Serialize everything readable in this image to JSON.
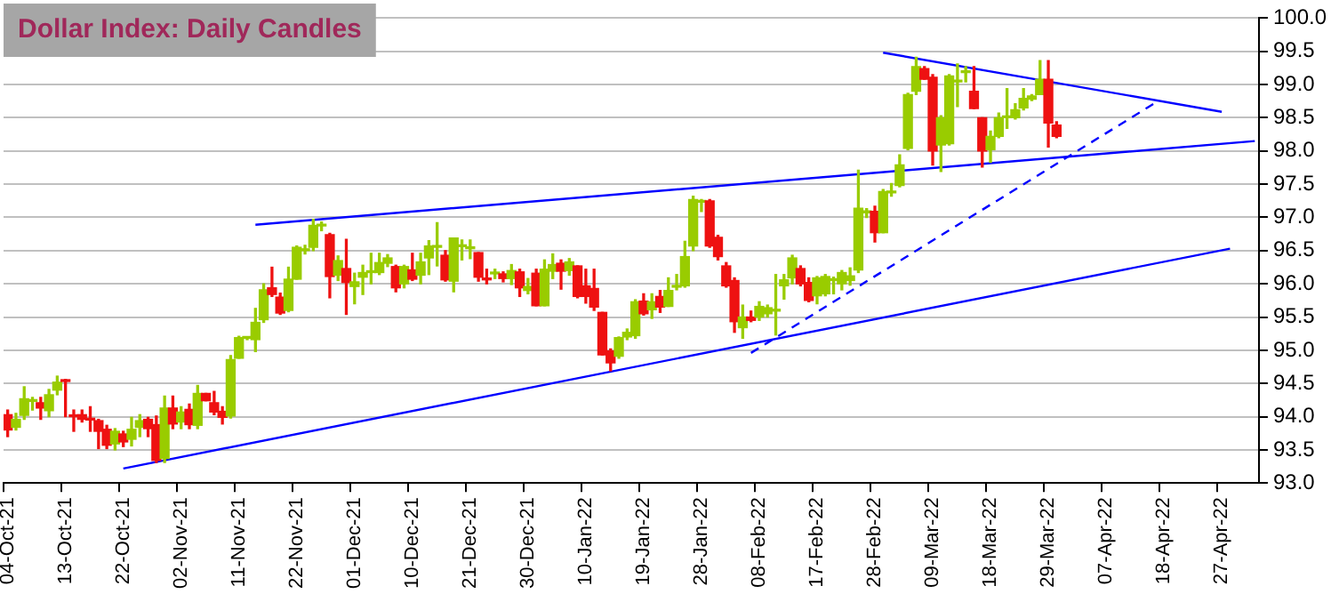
{
  "chart_data": {
    "type": "candlestick",
    "title": "Dollar Index: Daily Candles",
    "categories": [
      "04-Oct-21",
      null,
      null,
      null,
      null,
      null,
      null,
      "13-Oct-21",
      null,
      null,
      null,
      null,
      null,
      null,
      "22-Oct-21",
      null,
      null,
      null,
      null,
      null,
      null,
      "02-Nov-21",
      null,
      null,
      null,
      null,
      null,
      null,
      "11-Nov-21",
      null,
      null,
      null,
      null,
      null,
      null,
      "22-Nov-21",
      null,
      null,
      null,
      null,
      null,
      null,
      "01-Dec-21",
      null,
      null,
      null,
      null,
      null,
      null,
      "10-Dec-21",
      null,
      null,
      null,
      null,
      null,
      null,
      "21-Dec-21",
      null,
      null,
      null,
      null,
      null,
      null,
      "30-Dec-21",
      null,
      null,
      null,
      null,
      null,
      null,
      "10-Jan-22",
      null,
      null,
      null,
      null,
      null,
      null,
      "19-Jan-22",
      null,
      null,
      null,
      null,
      null,
      null,
      "28-Jan-22",
      null,
      null,
      null,
      null,
      null,
      null,
      "08-Feb-22",
      null,
      null,
      null,
      null,
      null,
      null,
      "17-Feb-22",
      null,
      null,
      null,
      null,
      null,
      null,
      "28-Feb-22",
      null,
      null,
      null,
      null,
      null,
      null,
      "09-Mar-22",
      null,
      null,
      null,
      null,
      null,
      null,
      "18-Mar-22",
      null,
      null,
      null,
      null,
      null,
      null,
      "29-Mar-22",
      null,
      null,
      null,
      null,
      null,
      null,
      "07-Apr-22",
      null,
      null,
      null,
      null,
      null,
      null,
      "18-Apr-22",
      null,
      null,
      null,
      null,
      null,
      null,
      "27-Apr-22",
      null,
      null,
      null,
      null
    ],
    "ohlc": [
      [
        94.03,
        94.1,
        93.7,
        93.8
      ],
      [
        93.84,
        94.05,
        93.8,
        93.96
      ],
      [
        94.02,
        94.45,
        93.96,
        94.27
      ],
      [
        94.23,
        94.29,
        94.1,
        94.24
      ],
      [
        94.21,
        94.29,
        93.96,
        94.13
      ],
      [
        94.09,
        94.41,
        94.0,
        94.33
      ],
      [
        94.4,
        94.61,
        94.33,
        94.52
      ],
      [
        94.54,
        94.56,
        94.0,
        94.53
      ],
      [
        94.01,
        94.1,
        93.78,
        94.0
      ],
      [
        94.03,
        94.1,
        93.92,
        93.96
      ],
      [
        93.96,
        94.15,
        93.78,
        93.95
      ],
      [
        93.94,
        93.96,
        93.52,
        93.78
      ],
      [
        93.81,
        93.87,
        93.52,
        93.57
      ],
      [
        93.59,
        93.82,
        93.5,
        93.78
      ],
      [
        93.74,
        93.78,
        93.55,
        93.62
      ],
      [
        93.66,
        93.99,
        93.56,
        93.81
      ],
      [
        93.84,
        94.03,
        93.7,
        93.94
      ],
      [
        93.96,
        93.99,
        93.7,
        93.82
      ],
      [
        93.88,
        94.01,
        93.31,
        93.34
      ],
      [
        93.37,
        94.31,
        93.31,
        94.13
      ],
      [
        94.13,
        94.31,
        93.82,
        93.89
      ],
      [
        93.92,
        94.15,
        93.82,
        94.07
      ],
      [
        94.11,
        94.19,
        93.82,
        93.88
      ],
      [
        93.87,
        94.47,
        93.82,
        94.35
      ],
      [
        94.35,
        94.35,
        94.24,
        94.24
      ],
      [
        94.21,
        94.38,
        94.03,
        94.07
      ],
      [
        94.08,
        94.15,
        93.89,
        93.99
      ],
      [
        94.01,
        94.92,
        93.98,
        94.86
      ],
      [
        94.88,
        95.21,
        94.88,
        95.19
      ],
      [
        95.18,
        95.2,
        95.16,
        95.19
      ],
      [
        95.16,
        95.63,
        94.98,
        95.42
      ],
      [
        95.46,
        96.0,
        95.42,
        95.91
      ],
      [
        95.94,
        96.25,
        95.81,
        95.84
      ],
      [
        95.8,
        95.86,
        95.54,
        95.56
      ],
      [
        95.6,
        96.25,
        95.58,
        96.07
      ],
      [
        96.07,
        96.57,
        96.07,
        96.55
      ],
      [
        96.5,
        96.58,
        96.45,
        96.51
      ],
      [
        96.55,
        96.97,
        96.5,
        96.88
      ],
      [
        96.87,
        96.93,
        96.8,
        96.88
      ],
      [
        96.74,
        96.76,
        95.79,
        96.11
      ],
      [
        96.13,
        96.42,
        96.05,
        96.35
      ],
      [
        96.23,
        96.67,
        95.54,
        96.02
      ],
      [
        95.96,
        96.16,
        95.7,
        96.03
      ],
      [
        96.1,
        96.28,
        95.84,
        96.17
      ],
      [
        96.17,
        96.46,
        96.0,
        96.18
      ],
      [
        96.17,
        96.46,
        96.14,
        96.32
      ],
      [
        96.31,
        96.44,
        96.26,
        96.39
      ],
      [
        96.26,
        96.28,
        95.88,
        95.94
      ],
      [
        96.0,
        96.28,
        95.94,
        96.26
      ],
      [
        96.21,
        96.46,
        96.05,
        96.07
      ],
      [
        96.13,
        96.46,
        96.0,
        96.33
      ],
      [
        96.39,
        96.65,
        96.14,
        96.57
      ],
      [
        96.55,
        96.92,
        96.27,
        96.56
      ],
      [
        96.43,
        96.5,
        96.04,
        96.06
      ],
      [
        96.04,
        96.69,
        95.88,
        96.69
      ],
      [
        96.56,
        96.66,
        96.36,
        96.57
      ],
      [
        96.53,
        96.66,
        96.38,
        96.54
      ],
      [
        96.47,
        96.47,
        96.04,
        96.1
      ],
      [
        96.08,
        96.22,
        96.0,
        96.06
      ],
      [
        96.15,
        96.22,
        96.08,
        96.16
      ],
      [
        96.15,
        96.18,
        96.03,
        96.08
      ],
      [
        96.08,
        96.29,
        95.99,
        96.2
      ],
      [
        96.18,
        96.22,
        95.81,
        95.94
      ],
      [
        95.9,
        96.08,
        95.85,
        95.96
      ],
      [
        96.16,
        96.22,
        95.67,
        95.67
      ],
      [
        95.67,
        96.36,
        95.67,
        96.22
      ],
      [
        96.19,
        96.45,
        96.08,
        96.29
      ],
      [
        96.31,
        96.36,
        95.92,
        96.19
      ],
      [
        96.2,
        96.38,
        96.13,
        96.33
      ],
      [
        96.27,
        96.27,
        95.79,
        95.81
      ],
      [
        95.97,
        96.22,
        95.71,
        95.81
      ],
      [
        95.93,
        96.22,
        95.6,
        95.65
      ],
      [
        95.57,
        95.57,
        94.93,
        94.93
      ],
      [
        94.99,
        95.02,
        94.69,
        94.81
      ],
      [
        94.91,
        95.2,
        94.88,
        95.19
      ],
      [
        95.2,
        95.32,
        95.16,
        95.27
      ],
      [
        95.22,
        95.76,
        95.18,
        95.73
      ],
      [
        95.74,
        95.85,
        95.53,
        95.55
      ],
      [
        95.61,
        95.85,
        95.48,
        95.73
      ],
      [
        95.81,
        95.9,
        95.57,
        95.65
      ],
      [
        95.66,
        96.09,
        95.66,
        95.9
      ],
      [
        95.95,
        96.14,
        95.91,
        95.96
      ],
      [
        95.97,
        96.64,
        95.95,
        96.41
      ],
      [
        96.57,
        97.32,
        96.5,
        97.27
      ],
      [
        97.23,
        97.27,
        97.09,
        97.24
      ],
      [
        97.25,
        97.27,
        96.55,
        96.57
      ],
      [
        96.7,
        96.73,
        96.36,
        96.41
      ],
      [
        96.27,
        96.32,
        95.95,
        95.97
      ],
      [
        96.05,
        96.09,
        95.27,
        95.43
      ],
      [
        95.34,
        95.68,
        95.18,
        95.5
      ],
      [
        95.5,
        95.59,
        95.43,
        95.45
      ],
      [
        95.5,
        95.73,
        95.45,
        95.66
      ],
      [
        95.55,
        95.68,
        95.5,
        95.64
      ],
      [
        95.59,
        96.14,
        95.23,
        95.6
      ],
      [
        95.97,
        96.14,
        95.77,
        96.06
      ],
      [
        96.09,
        96.43,
        96.0,
        96.39
      ],
      [
        96.23,
        96.27,
        95.97,
        96.0
      ],
      [
        96.02,
        96.09,
        95.73,
        95.75
      ],
      [
        95.82,
        96.11,
        95.7,
        96.09
      ],
      [
        95.85,
        96.14,
        95.82,
        96.11
      ],
      [
        96.05,
        96.1,
        95.85,
        96.06
      ],
      [
        96.0,
        96.2,
        95.91,
        96.17
      ],
      [
        96.05,
        96.24,
        95.98,
        96.12
      ],
      [
        96.21,
        97.71,
        96.17,
        97.14
      ],
      [
        97.07,
        97.13,
        97.0,
        97.08
      ],
      [
        97.09,
        97.17,
        96.63,
        96.77
      ],
      [
        96.77,
        97.42,
        96.77,
        97.39
      ],
      [
        97.37,
        97.51,
        97.32,
        97.38
      ],
      [
        97.48,
        97.94,
        97.46,
        97.79
      ],
      [
        98.04,
        98.87,
        98.02,
        98.85
      ],
      [
        98.9,
        99.41,
        98.85,
        99.27
      ],
      [
        99.24,
        99.27,
        99.08,
        99.08
      ],
      [
        99.11,
        99.15,
        97.79,
        98.0
      ],
      [
        98.09,
        98.53,
        97.69,
        98.5
      ],
      [
        98.11,
        99.15,
        98.09,
        99.13
      ],
      [
        99.04,
        99.31,
        98.67,
        99.05
      ],
      [
        99.18,
        99.27,
        99.04,
        99.19
      ],
      [
        98.9,
        99.27,
        98.64,
        98.64
      ],
      [
        98.5,
        98.5,
        97.76,
        98.0
      ],
      [
        98.02,
        98.3,
        97.83,
        98.22
      ],
      [
        98.22,
        98.57,
        98.2,
        98.5
      ],
      [
        98.5,
        98.94,
        98.34,
        98.51
      ],
      [
        98.5,
        98.71,
        98.48,
        98.62
      ],
      [
        98.65,
        98.94,
        98.62,
        98.79
      ],
      [
        98.78,
        98.85,
        98.76,
        98.83
      ],
      [
        98.85,
        99.36,
        98.85,
        99.08
      ],
      [
        99.08,
        99.36,
        98.06,
        98.42
      ],
      [
        98.39,
        98.44,
        98.2,
        98.22
      ],
      null,
      null,
      null,
      null,
      null,
      null,
      null,
      null,
      null,
      null,
      null,
      null,
      null,
      null,
      null,
      null,
      null,
      null,
      null,
      null,
      null,
      null,
      null,
      null
    ],
    "colors": [
      "#ee1111",
      "#99cc00",
      "#99cc00",
      "#99cc00",
      "#ee1111",
      "#99cc00",
      "#99cc00",
      "#ee1111",
      "#ee1111",
      "#ee1111",
      "#ee1111",
      "#ee1111",
      "#ee1111",
      "#99cc00",
      "#ee1111",
      "#99cc00",
      "#99cc00",
      "#ee1111",
      "#ee1111",
      "#99cc00",
      "#ee1111",
      "#99cc00",
      "#ee1111",
      "#99cc00",
      "#ee1111",
      "#ee1111",
      "#ee1111",
      "#99cc00",
      "#99cc00",
      "#99cc00",
      "#99cc00",
      "#99cc00",
      "#ee1111",
      "#ee1111",
      "#99cc00",
      "#99cc00",
      "#99cc00",
      "#99cc00",
      "#99cc00",
      "#ee1111",
      "#99cc00",
      "#ee1111",
      "#99cc00",
      "#99cc00",
      "#99cc00",
      "#99cc00",
      "#99cc00",
      "#ee1111",
      "#99cc00",
      "#ee1111",
      "#99cc00",
      "#99cc00",
      "#99cc00",
      "#ee1111",
      "#99cc00",
      "#99cc00",
      "#99cc00",
      "#ee1111",
      "#ee1111",
      "#99cc00",
      "#ee1111",
      "#99cc00",
      "#ee1111",
      "#99cc00",
      "#ee1111",
      "#99cc00",
      "#99cc00",
      "#ee1111",
      "#99cc00",
      "#ee1111",
      "#ee1111",
      "#ee1111",
      "#ee1111",
      "#ee1111",
      "#99cc00",
      "#99cc00",
      "#99cc00",
      "#ee1111",
      "#99cc00",
      "#ee1111",
      "#99cc00",
      "#99cc00",
      "#99cc00",
      "#99cc00",
      "#99cc00",
      "#ee1111",
      "#ee1111",
      "#ee1111",
      "#ee1111",
      "#99cc00",
      "#ee1111",
      "#99cc00",
      "#99cc00",
      "#99cc00",
      "#99cc00",
      "#99cc00",
      "#ee1111",
      "#ee1111",
      "#99cc00",
      "#99cc00",
      "#99cc00",
      "#99cc00",
      "#99cc00",
      "#99cc00",
      "#99cc00",
      "#ee1111",
      "#99cc00",
      "#99cc00",
      "#99cc00",
      "#99cc00",
      "#99cc00",
      "#ee1111",
      "#ee1111",
      "#99cc00",
      "#99cc00",
      "#99cc00",
      "#99cc00",
      "#ee1111",
      "#ee1111",
      "#99cc00",
      "#99cc00",
      "#99cc00",
      "#99cc00",
      "#99cc00",
      "#99cc00",
      "#99cc00",
      "#ee1111",
      "#ee1111",
      null,
      null,
      null,
      null,
      null,
      null,
      null,
      null,
      null,
      null,
      null,
      null,
      null,
      null,
      null,
      null,
      null,
      null,
      null,
      null,
      null,
      null,
      null,
      null
    ],
    "series": [
      {
        "type": "line",
        "color": "#0000ff",
        "line_style": "solid",
        "values": [
          null,
          null,
          null,
          null,
          null,
          null,
          null,
          null,
          null,
          null,
          null,
          null,
          null,
          null,
          null,
          null,
          null,
          null,
          null,
          null,
          null,
          null,
          null,
          null,
          null,
          null,
          null,
          null,
          null,
          null,
          96.89,
          null,
          null,
          null,
          null,
          null,
          null,
          null,
          null,
          null,
          null,
          null,
          null,
          null,
          null,
          null,
          null,
          null,
          null,
          null,
          null,
          null,
          null,
          null,
          null,
          null,
          null,
          null,
          null,
          null,
          null,
          null,
          null,
          null,
          null,
          null,
          null,
          null,
          null,
          null,
          null,
          null,
          null,
          null,
          null,
          null,
          null,
          null,
          null,
          null,
          null,
          null,
          null,
          null,
          null,
          null,
          null,
          null,
          null,
          null,
          null,
          null,
          null,
          null,
          null,
          null,
          null,
          null,
          null,
          null,
          null,
          null,
          null,
          null,
          null,
          null,
          null,
          null,
          null,
          null,
          null,
          null,
          null,
          null,
          null,
          null,
          null,
          null,
          null,
          null,
          null,
          null,
          null,
          null,
          null,
          null,
          null,
          null,
          null,
          null,
          null,
          null,
          null,
          null,
          null,
          null,
          null,
          null,
          null,
          null,
          null,
          null,
          null,
          null,
          null,
          null,
          null,
          null,
          null,
          null,
          null,
          98.15
        ]
      },
      {
        "type": "line",
        "color": "#0000ff",
        "line_style": "solid",
        "values": [
          null,
          null,
          null,
          null,
          null,
          null,
          null,
          null,
          null,
          null,
          null,
          null,
          null,
          null,
          93.22,
          null,
          null,
          null,
          null,
          null,
          null,
          null,
          null,
          null,
          null,
          null,
          null,
          null,
          null,
          null,
          null,
          null,
          null,
          null,
          null,
          null,
          null,
          null,
          null,
          null,
          null,
          null,
          null,
          null,
          null,
          null,
          null,
          null,
          null,
          null,
          null,
          null,
          null,
          null,
          null,
          null,
          null,
          null,
          null,
          null,
          null,
          null,
          null,
          null,
          null,
          null,
          null,
          null,
          null,
          null,
          null,
          null,
          null,
          null,
          null,
          null,
          null,
          null,
          null,
          null,
          null,
          null,
          null,
          null,
          null,
          null,
          null,
          null,
          null,
          null,
          null,
          null,
          null,
          null,
          null,
          null,
          null,
          null,
          null,
          null,
          null,
          null,
          null,
          null,
          null,
          null,
          null,
          null,
          null,
          null,
          null,
          null,
          null,
          null,
          null,
          null,
          null,
          null,
          null,
          null,
          null,
          null,
          null,
          null,
          null,
          null,
          null,
          null,
          null,
          null,
          null,
          null,
          null,
          null,
          null,
          null,
          null,
          null,
          null,
          null,
          null,
          null,
          null,
          null,
          null,
          null,
          null,
          null,
          96.53,
          null,
          null,
          null
        ]
      },
      {
        "type": "line",
        "color": "#0000ff",
        "line_style": "solid",
        "values": [
          null,
          null,
          null,
          null,
          null,
          null,
          null,
          null,
          null,
          null,
          null,
          null,
          null,
          null,
          null,
          null,
          null,
          null,
          null,
          null,
          null,
          null,
          null,
          null,
          null,
          null,
          null,
          null,
          null,
          null,
          null,
          null,
          null,
          null,
          null,
          null,
          null,
          null,
          null,
          null,
          null,
          null,
          null,
          null,
          null,
          null,
          null,
          null,
          null,
          null,
          null,
          null,
          null,
          null,
          null,
          null,
          null,
          null,
          null,
          null,
          null,
          null,
          null,
          null,
          null,
          null,
          null,
          null,
          null,
          null,
          null,
          null,
          null,
          null,
          null,
          null,
          null,
          null,
          null,
          null,
          null,
          null,
          null,
          null,
          null,
          null,
          null,
          null,
          null,
          null,
          null,
          null,
          null,
          null,
          null,
          null,
          null,
          null,
          null,
          null,
          null,
          null,
          null,
          null,
          null,
          null,
          99.48,
          null,
          null,
          null,
          null,
          null,
          null,
          null,
          null,
          null,
          null,
          null,
          null,
          null,
          null,
          null,
          null,
          null,
          null,
          null,
          null,
          null,
          null,
          null,
          null,
          null,
          null,
          null,
          null,
          null,
          null,
          null,
          null,
          null,
          null,
          null,
          null,
          null,
          null,
          null,
          null,
          98.59,
          null,
          null,
          null,
          null
        ]
      },
      {
        "type": "line",
        "color": "#0000ff",
        "line_style": "dashed",
        "values": [
          null,
          null,
          null,
          null,
          null,
          null,
          null,
          null,
          null,
          null,
          null,
          null,
          null,
          null,
          null,
          null,
          null,
          null,
          null,
          null,
          null,
          null,
          null,
          null,
          null,
          null,
          null,
          null,
          null,
          null,
          null,
          null,
          null,
          null,
          null,
          null,
          null,
          null,
          null,
          null,
          null,
          null,
          null,
          null,
          null,
          null,
          null,
          null,
          null,
          null,
          null,
          null,
          null,
          null,
          null,
          null,
          null,
          null,
          null,
          null,
          null,
          null,
          null,
          null,
          null,
          null,
          null,
          null,
          null,
          null,
          null,
          null,
          null,
          null,
          null,
          null,
          null,
          null,
          null,
          null,
          null,
          null,
          null,
          null,
          null,
          null,
          null,
          null,
          null,
          null,
          94.96,
          null,
          null,
          null,
          null,
          null,
          null,
          null,
          null,
          null,
          null,
          null,
          null,
          null,
          null,
          null,
          null,
          null,
          null,
          null,
          null,
          null,
          null,
          null,
          null,
          null,
          null,
          null,
          null,
          null,
          null,
          null,
          null,
          null,
          null,
          null,
          null,
          null,
          null,
          null,
          null,
          null,
          null,
          null,
          null,
          null,
          null,
          null,
          null,
          98.73,
          null,
          null,
          null,
          null,
          null,
          null,
          null,
          null,
          null,
          null,
          null,
          null
        ]
      }
    ],
    "ylim": [
      93,
      100
    ],
    "yticks": [
      {
        "value": 93,
        "label": "93.0"
      },
      {
        "value": 93.5,
        "label": "93.5"
      },
      {
        "value": 94,
        "label": "94.0"
      },
      {
        "value": 94.5,
        "label": "94.5"
      },
      {
        "value": 95,
        "label": "95.0"
      },
      {
        "value": 95.5,
        "label": "95.5"
      },
      {
        "value": 96,
        "label": "96.0"
      },
      {
        "value": 96.5,
        "label": "96.5"
      },
      {
        "value": 97,
        "label": "97.0"
      },
      {
        "value": 97.5,
        "label": "97.5"
      },
      {
        "value": 98,
        "label": "98.0"
      },
      {
        "value": 98.5,
        "label": "98.5"
      },
      {
        "value": 99,
        "label": "99.0"
      },
      {
        "value": 99.5,
        "label": "99.5"
      },
      {
        "value": 100,
        "label": "100.0"
      }
    ],
    "grid": "y"
  }
}
